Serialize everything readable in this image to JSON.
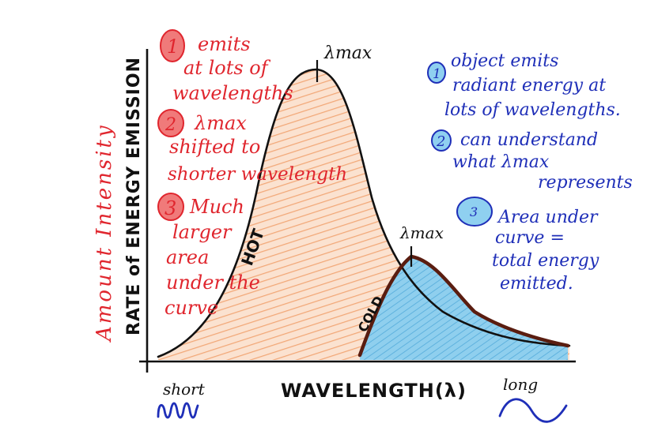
{
  "colors": {
    "red_ink": "#e0262e",
    "blue_ink": "#1f2fb8",
    "black_ink": "#111111",
    "hot_fill": "#f2a878",
    "cold_fill": "#7fc6e8",
    "red_badge": "#f07a7a",
    "blue_badge": "#8fd0f0"
  },
  "axes": {
    "y_label_black": "RATE of ENERGY EMISSION",
    "y_label_red": "Amount Intensity",
    "x_label": "WAVELENGTH(λ)",
    "x_short": "short",
    "x_long": "long"
  },
  "curves": {
    "hot_label": "HOT",
    "cold_label": "COLD",
    "hot_peak_label": "λmax",
    "cold_peak_label": "λmax"
  },
  "left_notes": [
    {
      "num": "1",
      "lines": [
        "emits",
        "at lots of",
        "wavelengths"
      ]
    },
    {
      "num": "2",
      "lines": [
        "λmax",
        "shifted to",
        "shorter wavelength"
      ]
    },
    {
      "num": "3",
      "lines": [
        "Much",
        "larger",
        "area",
        "under the",
        "curve"
      ]
    }
  ],
  "right_notes": [
    {
      "num": "1",
      "lines": [
        "object emits",
        "radiant energy at",
        "lots of wavelengths."
      ]
    },
    {
      "num": "2",
      "lines": [
        "can understand",
        "what λmax",
        "represents"
      ]
    },
    {
      "num": "3",
      "lines": [
        "Area under",
        "curve =",
        "total energy",
        "emitted."
      ]
    }
  ]
}
